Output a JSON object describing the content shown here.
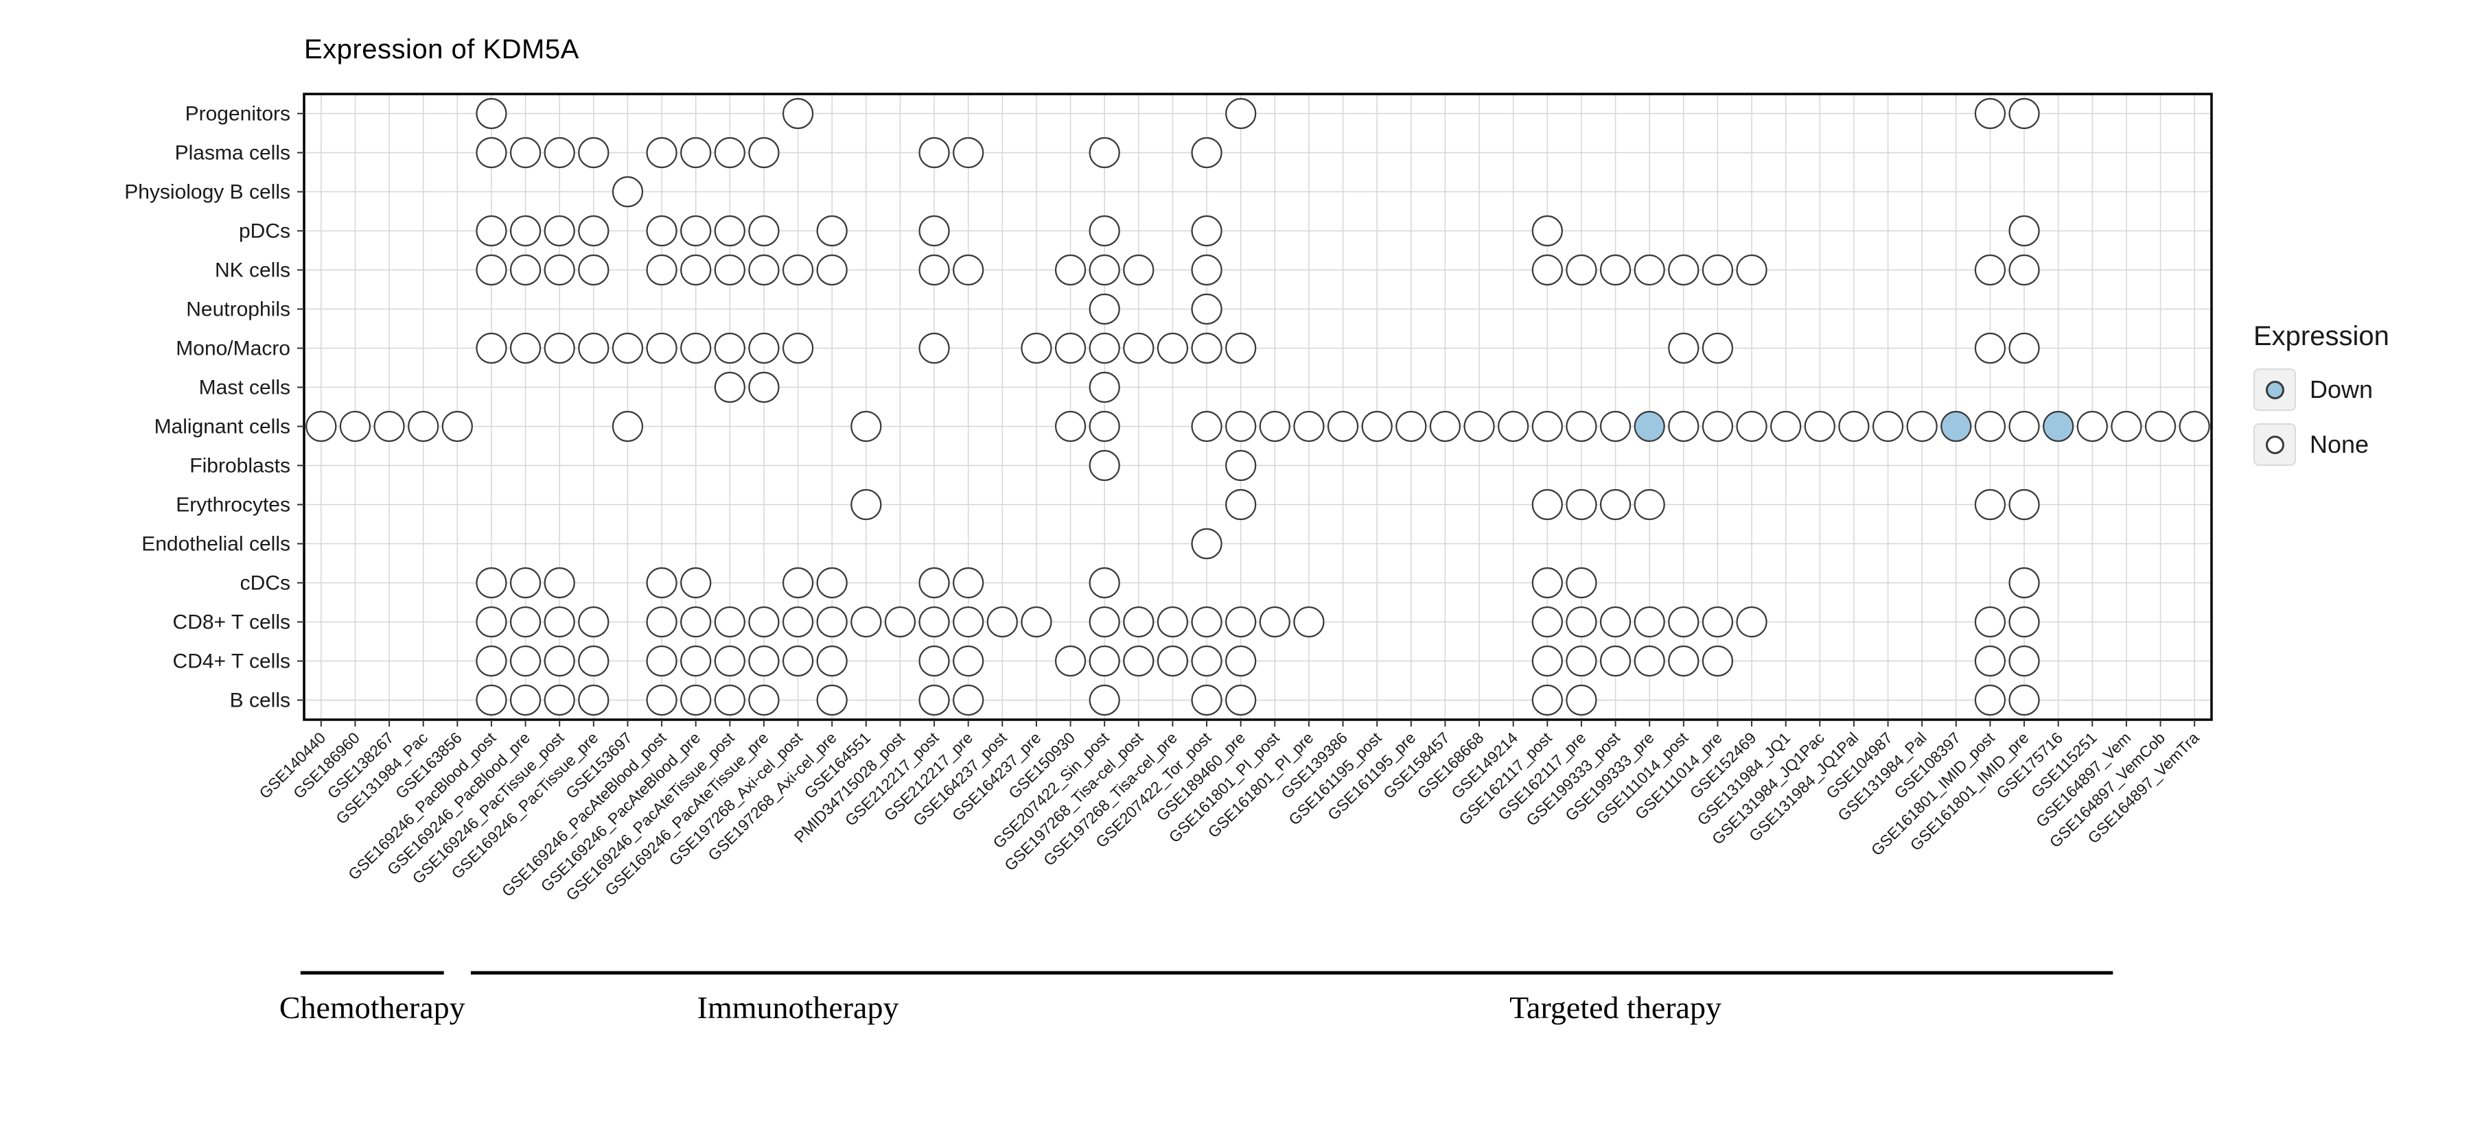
{
  "chart_data": {
    "type": "heatmap",
    "title": "Expression of KDM5A",
    "xlabel": "",
    "ylabel": "",
    "legend": {
      "title": "Expression",
      "items": [
        {
          "label": "Down",
          "color": "#9DC7E0"
        },
        {
          "label": "None",
          "color": "#FFFFFF"
        }
      ]
    },
    "rows": [
      "Progenitors",
      "Plasma cells",
      "Physiology B cells",
      "pDCs",
      "NK cells",
      "Neutrophils",
      "Mono/Macro",
      "Mast cells",
      "Malignant cells",
      "Fibroblasts",
      "Erythrocytes",
      "Endothelial cells",
      "cDCs",
      "CD8+ T cells",
      "CD4+ T cells",
      "B cells"
    ],
    "columns": [
      "GSE140440",
      "GSE186960",
      "GSE138267",
      "GSE131984_Pac",
      "GSE163856",
      "GSE169246_PacBlood_post",
      "GSE169246_PacBlood_pre",
      "GSE169246_PacTissue_post",
      "GSE169246_PacTissue_pre",
      "GSE153697",
      "GSE169246_PacAteBlood_post",
      "GSE169246_PacAteBlood_pre",
      "GSE169246_PacAteTissue_post",
      "GSE169246_PacAteTissue_pre",
      "GSE197268_Axi-cel_post",
      "GSE197268_Axi-cel_pre",
      "GSE164551",
      "PMID34715028_post",
      "GSE212217_post",
      "GSE212217_pre",
      "GSE164237_post",
      "GSE164237_pre",
      "GSE150930",
      "GSE207422_Sin_post",
      "GSE197268_Tisa-cel_post",
      "GSE197268_Tisa-cel_pre",
      "GSE207422_Tor_post",
      "GSE189460_pre",
      "GSE161801_PI_post",
      "GSE161801_PI_pre",
      "GSE139386",
      "GSE161195_post",
      "GSE161195_pre",
      "GSE158457",
      "GSE168668",
      "GSE149214",
      "GSE162117_post",
      "GSE162117_pre",
      "GSE199333_post",
      "GSE199333_pre",
      "GSE111014_post",
      "GSE111014_pre",
      "GSE152469",
      "GSE131984_JQ1",
      "GSE131984_JQ1Pac",
      "GSE131984_JQ1Pal",
      "GSE104987",
      "GSE131984_Pal",
      "GSE108397",
      "GSE161801_IMID_post",
      "GSE161801_IMID_pre",
      "GSE175716",
      "GSE115251",
      "GSE164897_Vem",
      "GSE164897_VemCob",
      "GSE164897_VemTra"
    ],
    "value_map": {
      "none": "None (open circle)",
      "down": "Down (blue circle)",
      "absent": "no dot"
    },
    "dots": [
      {
        "row": "Progenitors",
        "none": [
          6,
          15,
          28,
          50,
          51
        ],
        "down": []
      },
      {
        "row": "Plasma cells",
        "none": [
          6,
          7,
          8,
          9,
          11,
          12,
          13,
          14,
          19,
          20,
          24,
          27
        ],
        "down": []
      },
      {
        "row": "Physiology B cells",
        "none": [
          10
        ],
        "down": []
      },
      {
        "row": "pDCs",
        "none": [
          6,
          7,
          8,
          9,
          11,
          12,
          13,
          14,
          16,
          19,
          24,
          27,
          37,
          51
        ],
        "down": []
      },
      {
        "row": "NK cells",
        "none": [
          6,
          7,
          8,
          9,
          11,
          12,
          13,
          14,
          15,
          16,
          19,
          20,
          23,
          24,
          25,
          27,
          37,
          38,
          39,
          40,
          41,
          42,
          43,
          50,
          51
        ],
        "down": []
      },
      {
        "row": "Neutrophils",
        "none": [
          24,
          27
        ],
        "down": []
      },
      {
        "row": "Mono/Macro",
        "none": [
          6,
          7,
          8,
          9,
          10,
          11,
          12,
          13,
          14,
          15,
          19,
          22,
          23,
          24,
          25,
          26,
          27,
          28,
          41,
          42,
          50,
          51
        ],
        "down": []
      },
      {
        "row": "Mast cells",
        "none": [
          13,
          14,
          24
        ],
        "down": []
      },
      {
        "row": "Malignant cells",
        "none": [
          1,
          2,
          3,
          4,
          5,
          10,
          17,
          23,
          24,
          27,
          28,
          29,
          30,
          31,
          32,
          33,
          34,
          35,
          36,
          37,
          38,
          39,
          41,
          42,
          43,
          44,
          45,
          46,
          47,
          48,
          50,
          51,
          53,
          54,
          55,
          56
        ],
        "down": [
          40,
          49,
          52
        ]
      },
      {
        "row": "Fibroblasts",
        "none": [
          24,
          28
        ],
        "down": []
      },
      {
        "row": "Erythrocytes",
        "none": [
          17,
          28,
          37,
          38,
          39,
          40,
          50,
          51
        ],
        "down": []
      },
      {
        "row": "Endothelial cells",
        "none": [
          27
        ],
        "down": []
      },
      {
        "row": "cDCs",
        "none": [
          6,
          7,
          8,
          11,
          12,
          15,
          16,
          19,
          20,
          24,
          37,
          38,
          51
        ],
        "down": []
      },
      {
        "row": "CD8+ T cells",
        "none": [
          6,
          7,
          8,
          9,
          11,
          12,
          13,
          14,
          15,
          16,
          17,
          18,
          19,
          20,
          21,
          22,
          24,
          25,
          26,
          27,
          28,
          29,
          30,
          37,
          38,
          39,
          40,
          41,
          42,
          43,
          50,
          51
        ],
        "down": []
      },
      {
        "row": "CD4+ T cells",
        "none": [
          6,
          7,
          8,
          9,
          11,
          12,
          13,
          14,
          15,
          16,
          19,
          20,
          23,
          24,
          25,
          26,
          27,
          28,
          37,
          38,
          39,
          40,
          41,
          42,
          50,
          51
        ],
        "down": []
      },
      {
        "row": "B cells",
        "none": [
          6,
          7,
          8,
          9,
          11,
          12,
          13,
          14,
          16,
          19,
          20,
          24,
          27,
          28,
          37,
          38,
          50,
          51
        ],
        "down": []
      }
    ],
    "groups": [
      {
        "label": "Chemotherapy",
        "col_start": 1,
        "col_end": 4
      },
      {
        "label": "Immunotherapy",
        "col_start": 6,
        "col_end": 24
      },
      {
        "label": "Targeted therapy",
        "col_start": 25,
        "col_end": 53
      }
    ],
    "grid": true,
    "legend_position": "right"
  },
  "colors": {
    "down": "#9DC7E0",
    "none": "#FFFFFF",
    "stroke": "#3A3A3A",
    "grid": "#D6D6D6",
    "border": "#000000",
    "text": "#1A1A1A",
    "tick": "#333333"
  }
}
